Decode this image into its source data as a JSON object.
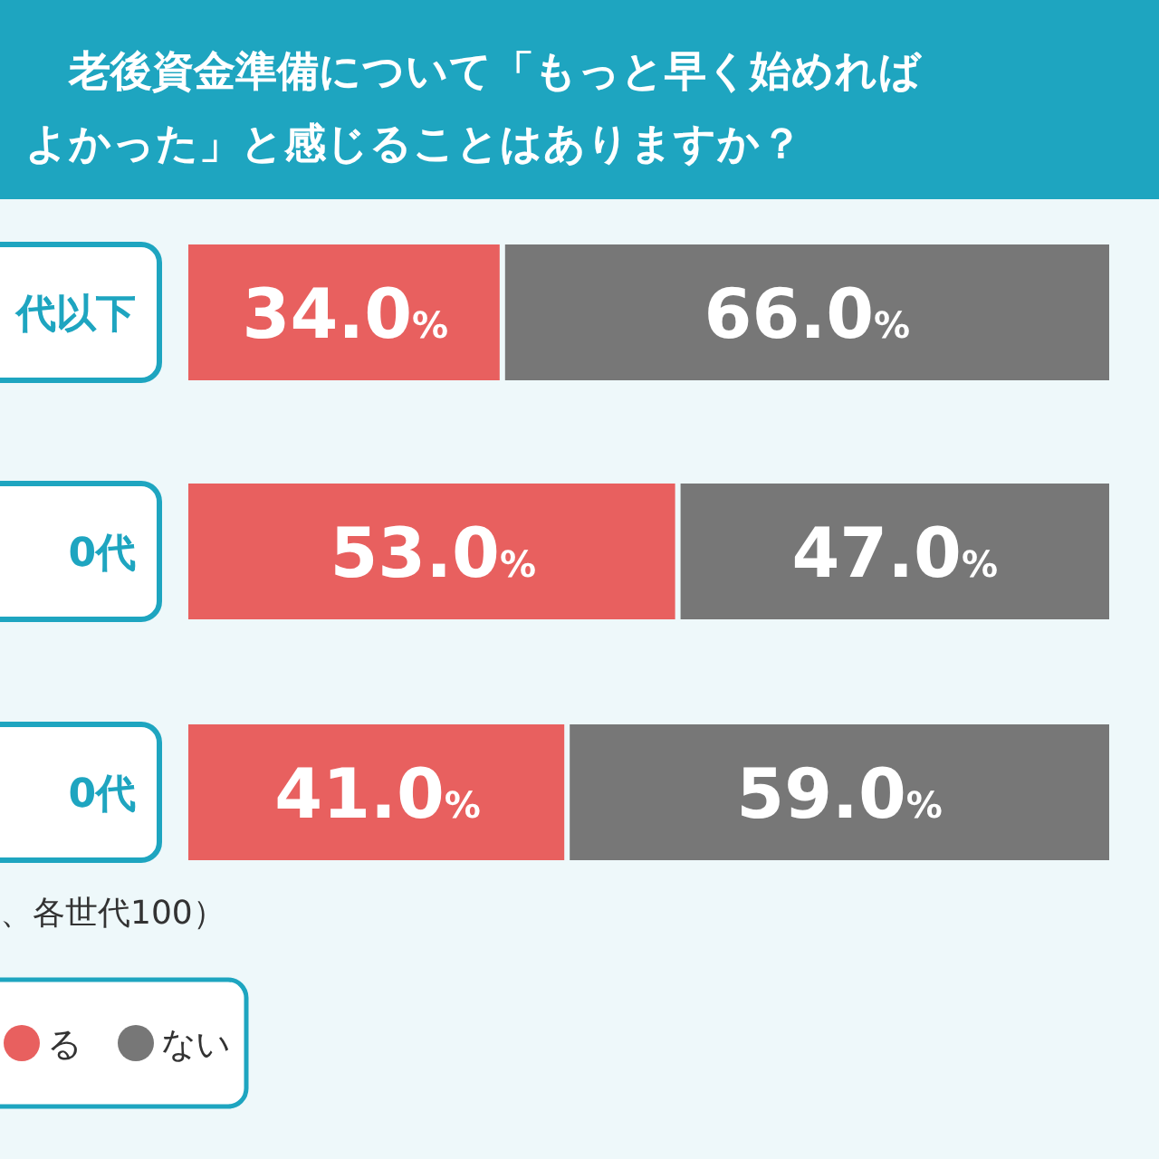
{
  "chart_data": {
    "type": "bar",
    "orientation": "horizontal",
    "stacked": true,
    "title": "老後資金準備について「もっと早く始めればよかった」と感じることはありますか？",
    "categories": [
      "代以下",
      "0代",
      "0代"
    ],
    "xlim": [
      0,
      100
    ],
    "series": [
      {
        "name": "る",
        "color": "#e8605f",
        "values": [
          34.0,
          53.0,
          41.0
        ],
        "value_labels": [
          "34.0%",
          "53.0%",
          "41.0%"
        ]
      },
      {
        "name": "ない",
        "color": "#777777",
        "values": [
          66.0,
          47.0,
          59.0
        ],
        "value_labels": [
          "66.0%",
          "47.0%",
          "59.0%"
        ]
      }
    ],
    "annotations": [
      "、各世代100）"
    ],
    "legend": "bottom left"
  }
}
